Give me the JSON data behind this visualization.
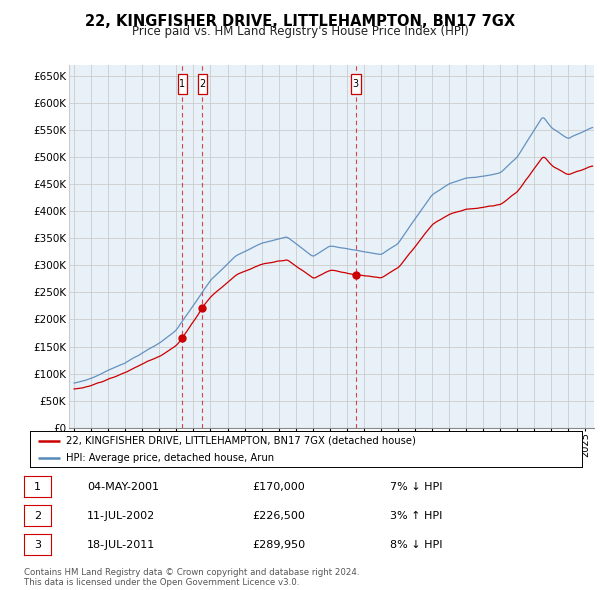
{
  "title": "22, KINGFISHER DRIVE, LITTLEHAMPTON, BN17 7GX",
  "subtitle": "Price paid vs. HM Land Registry's House Price Index (HPI)",
  "legend_line1": "22, KINGFISHER DRIVE, LITTLEHAMPTON, BN17 7GX (detached house)",
  "legend_line2": "HPI: Average price, detached house, Arun",
  "footnote": "Contains HM Land Registry data © Crown copyright and database right 2024.\nThis data is licensed under the Open Government Licence v3.0.",
  "transactions": [
    {
      "num": 1,
      "date": "04-MAY-2001",
      "price": "£170,000",
      "hpi": "7% ↓ HPI",
      "year": 2001.35,
      "value": 170000
    },
    {
      "num": 2,
      "date": "11-JUL-2002",
      "price": "£226,500",
      "hpi": "3% ↑ HPI",
      "year": 2002.53,
      "value": 226500
    },
    {
      "num": 3,
      "date": "18-JUL-2011",
      "price": "£289,950",
      "hpi": "8% ↓ HPI",
      "year": 2011.53,
      "value": 289950
    }
  ],
  "ylim": [
    0,
    670000
  ],
  "yticks": [
    0,
    50000,
    100000,
    150000,
    200000,
    250000,
    300000,
    350000,
    400000,
    450000,
    500000,
    550000,
    600000,
    650000
  ],
  "xlim_start": 1994.7,
  "xlim_end": 2025.5,
  "color_red": "#cc0000",
  "color_blue": "#5588bb",
  "color_grid": "#cccccc",
  "color_chart_bg": "#e8f0f8",
  "color_bg": "#ffffff"
}
